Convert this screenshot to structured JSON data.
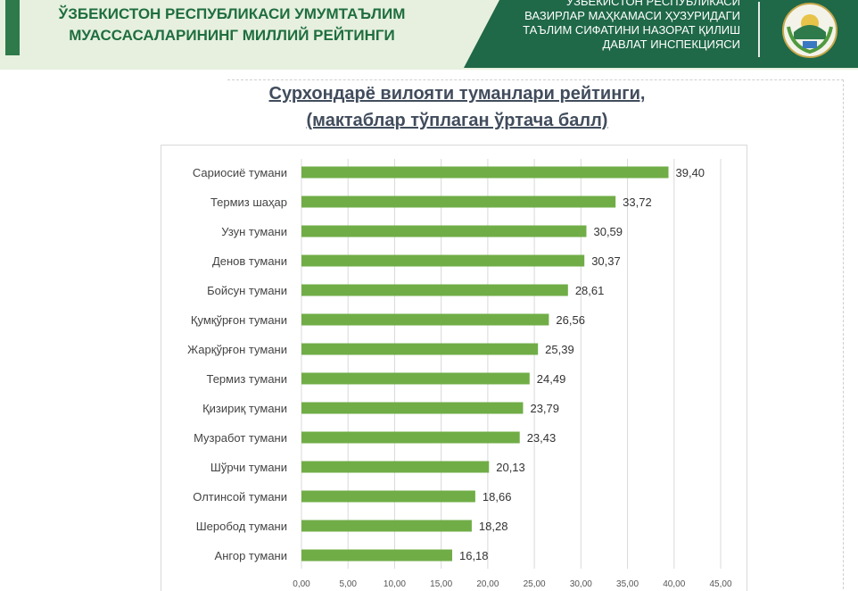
{
  "header": {
    "left_title_line1": "ЎЗБЕКИСТОН РЕСПУБЛИКАСИ УМУМТАЪЛИМ",
    "left_title_line2": "МУАССАСАЛАРИНИНГ  МИЛЛИЙ РЕЙТИНГИ",
    "right_line1": "ЎЗБЕКИСТОН РЕСПУБЛИКАСИ",
    "right_line2": "ВАЗИРЛАР МАҲКАМАСИ ҲУЗУРИДАГИ",
    "right_line3": "ТАЪЛИМ СИФАТИНИ НАЗОРАТ ҚИЛИШ",
    "right_line4": "ДАВЛАТ ИНСПЕКЦИЯСИ",
    "emblem_icon": "state-emblem-icon",
    "colors": {
      "dark_green": "#1f6848",
      "light_green_bg": "#e7f0df"
    }
  },
  "chart_data": {
    "type": "bar",
    "orientation": "horizontal",
    "title_line1": "Сурхондарё вилояти туманлари рейтинги,",
    "title_line2": "(мактаблар тўплаган ўртача балл)",
    "categories": [
      "Сариосиё тумани",
      "Термиз шаҳар",
      "Узун тумани",
      "Денов тумани",
      "Бойсун тумани",
      "Қумқўрғон тумани",
      "Жарқўрғон тумани",
      "Термиз тумани",
      "Қизириқ тумани",
      "Музработ тумани",
      "Шўрчи тумани",
      "Олтинсой тумани",
      "Шеробод тумани",
      "Ангор тумани"
    ],
    "values": [
      39.4,
      33.72,
      30.59,
      30.37,
      28.61,
      26.56,
      25.39,
      24.49,
      23.79,
      23.43,
      20.13,
      18.66,
      18.28,
      16.18
    ],
    "value_labels": [
      "39,40",
      "33,72",
      "30,59",
      "30,37",
      "28,61",
      "26,56",
      "25,39",
      "24,49",
      "23,79",
      "23,43",
      "20,13",
      "18,66",
      "18,28",
      "16,18"
    ],
    "xlim": [
      0,
      45
    ],
    "x_ticks": [
      "0,00",
      "5,00",
      "10,00",
      "15,00",
      "20,00",
      "25,00",
      "30,00",
      "35,00",
      "40,00",
      "45,00"
    ],
    "bar_color": "#70ad47",
    "grid": true,
    "legend": "none"
  }
}
